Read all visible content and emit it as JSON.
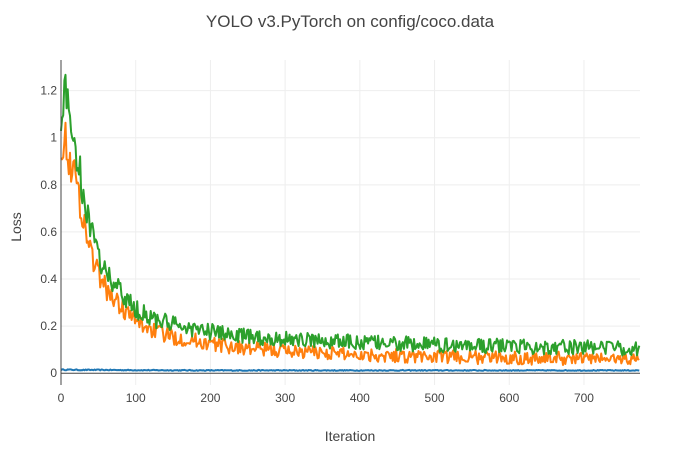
{
  "chart_data": {
    "type": "line",
    "title": "YOLO v3.PyTorch on config/coco.data",
    "xlabel": "Iteration",
    "ylabel": "Loss",
    "xlim": [
      0,
      775
    ],
    "ylim": [
      -0.05,
      1.33
    ],
    "x_ticks": [
      0,
      100,
      200,
      300,
      400,
      500,
      600,
      700
    ],
    "y_ticks": [
      0,
      0.2,
      0.4,
      0.6,
      0.8,
      1,
      1.2
    ],
    "x_tick_labels": [
      "0",
      "100",
      "200",
      "300",
      "400",
      "500",
      "600",
      "700"
    ],
    "y_tick_labels": [
      "0",
      "0.2",
      "0.4",
      "0.6",
      "0.8",
      "1",
      "1.2"
    ],
    "grid": true,
    "legend": false,
    "series": [
      {
        "color": "#1f77b4",
        "x": [
          0,
          10,
          25,
          50,
          100,
          200,
          300,
          400,
          500,
          600,
          700,
          775
        ],
        "y": [
          0.015,
          0.015,
          0.014,
          0.014,
          0.013,
          0.012,
          0.012,
          0.012,
          0.012,
          0.012,
          0.012,
          0.012
        ]
      },
      {
        "color": "#ff7f0e",
        "x": [
          0,
          5,
          10,
          20,
          30,
          40,
          50,
          60,
          75,
          100,
          125,
          150,
          200,
          250,
          300,
          350,
          400,
          450,
          500,
          550,
          600,
          650,
          700,
          775
        ],
        "y": [
          0.98,
          1.0,
          0.92,
          0.82,
          0.65,
          0.52,
          0.42,
          0.36,
          0.3,
          0.22,
          0.18,
          0.155,
          0.125,
          0.105,
          0.095,
          0.088,
          0.08,
          0.075,
          0.07,
          0.068,
          0.066,
          0.064,
          0.063,
          0.06
        ]
      },
      {
        "color": "#2ca02c",
        "x": [
          0,
          5,
          10,
          20,
          30,
          40,
          50,
          60,
          75,
          100,
          125,
          150,
          200,
          250,
          300,
          350,
          400,
          450,
          500,
          550,
          600,
          650,
          700,
          775
        ],
        "y": [
          1.1,
          1.2,
          1.12,
          0.95,
          0.76,
          0.6,
          0.5,
          0.43,
          0.36,
          0.27,
          0.23,
          0.205,
          0.175,
          0.155,
          0.145,
          0.138,
          0.13,
          0.125,
          0.12,
          0.118,
          0.115,
          0.112,
          0.11,
          0.105
        ]
      }
    ]
  }
}
